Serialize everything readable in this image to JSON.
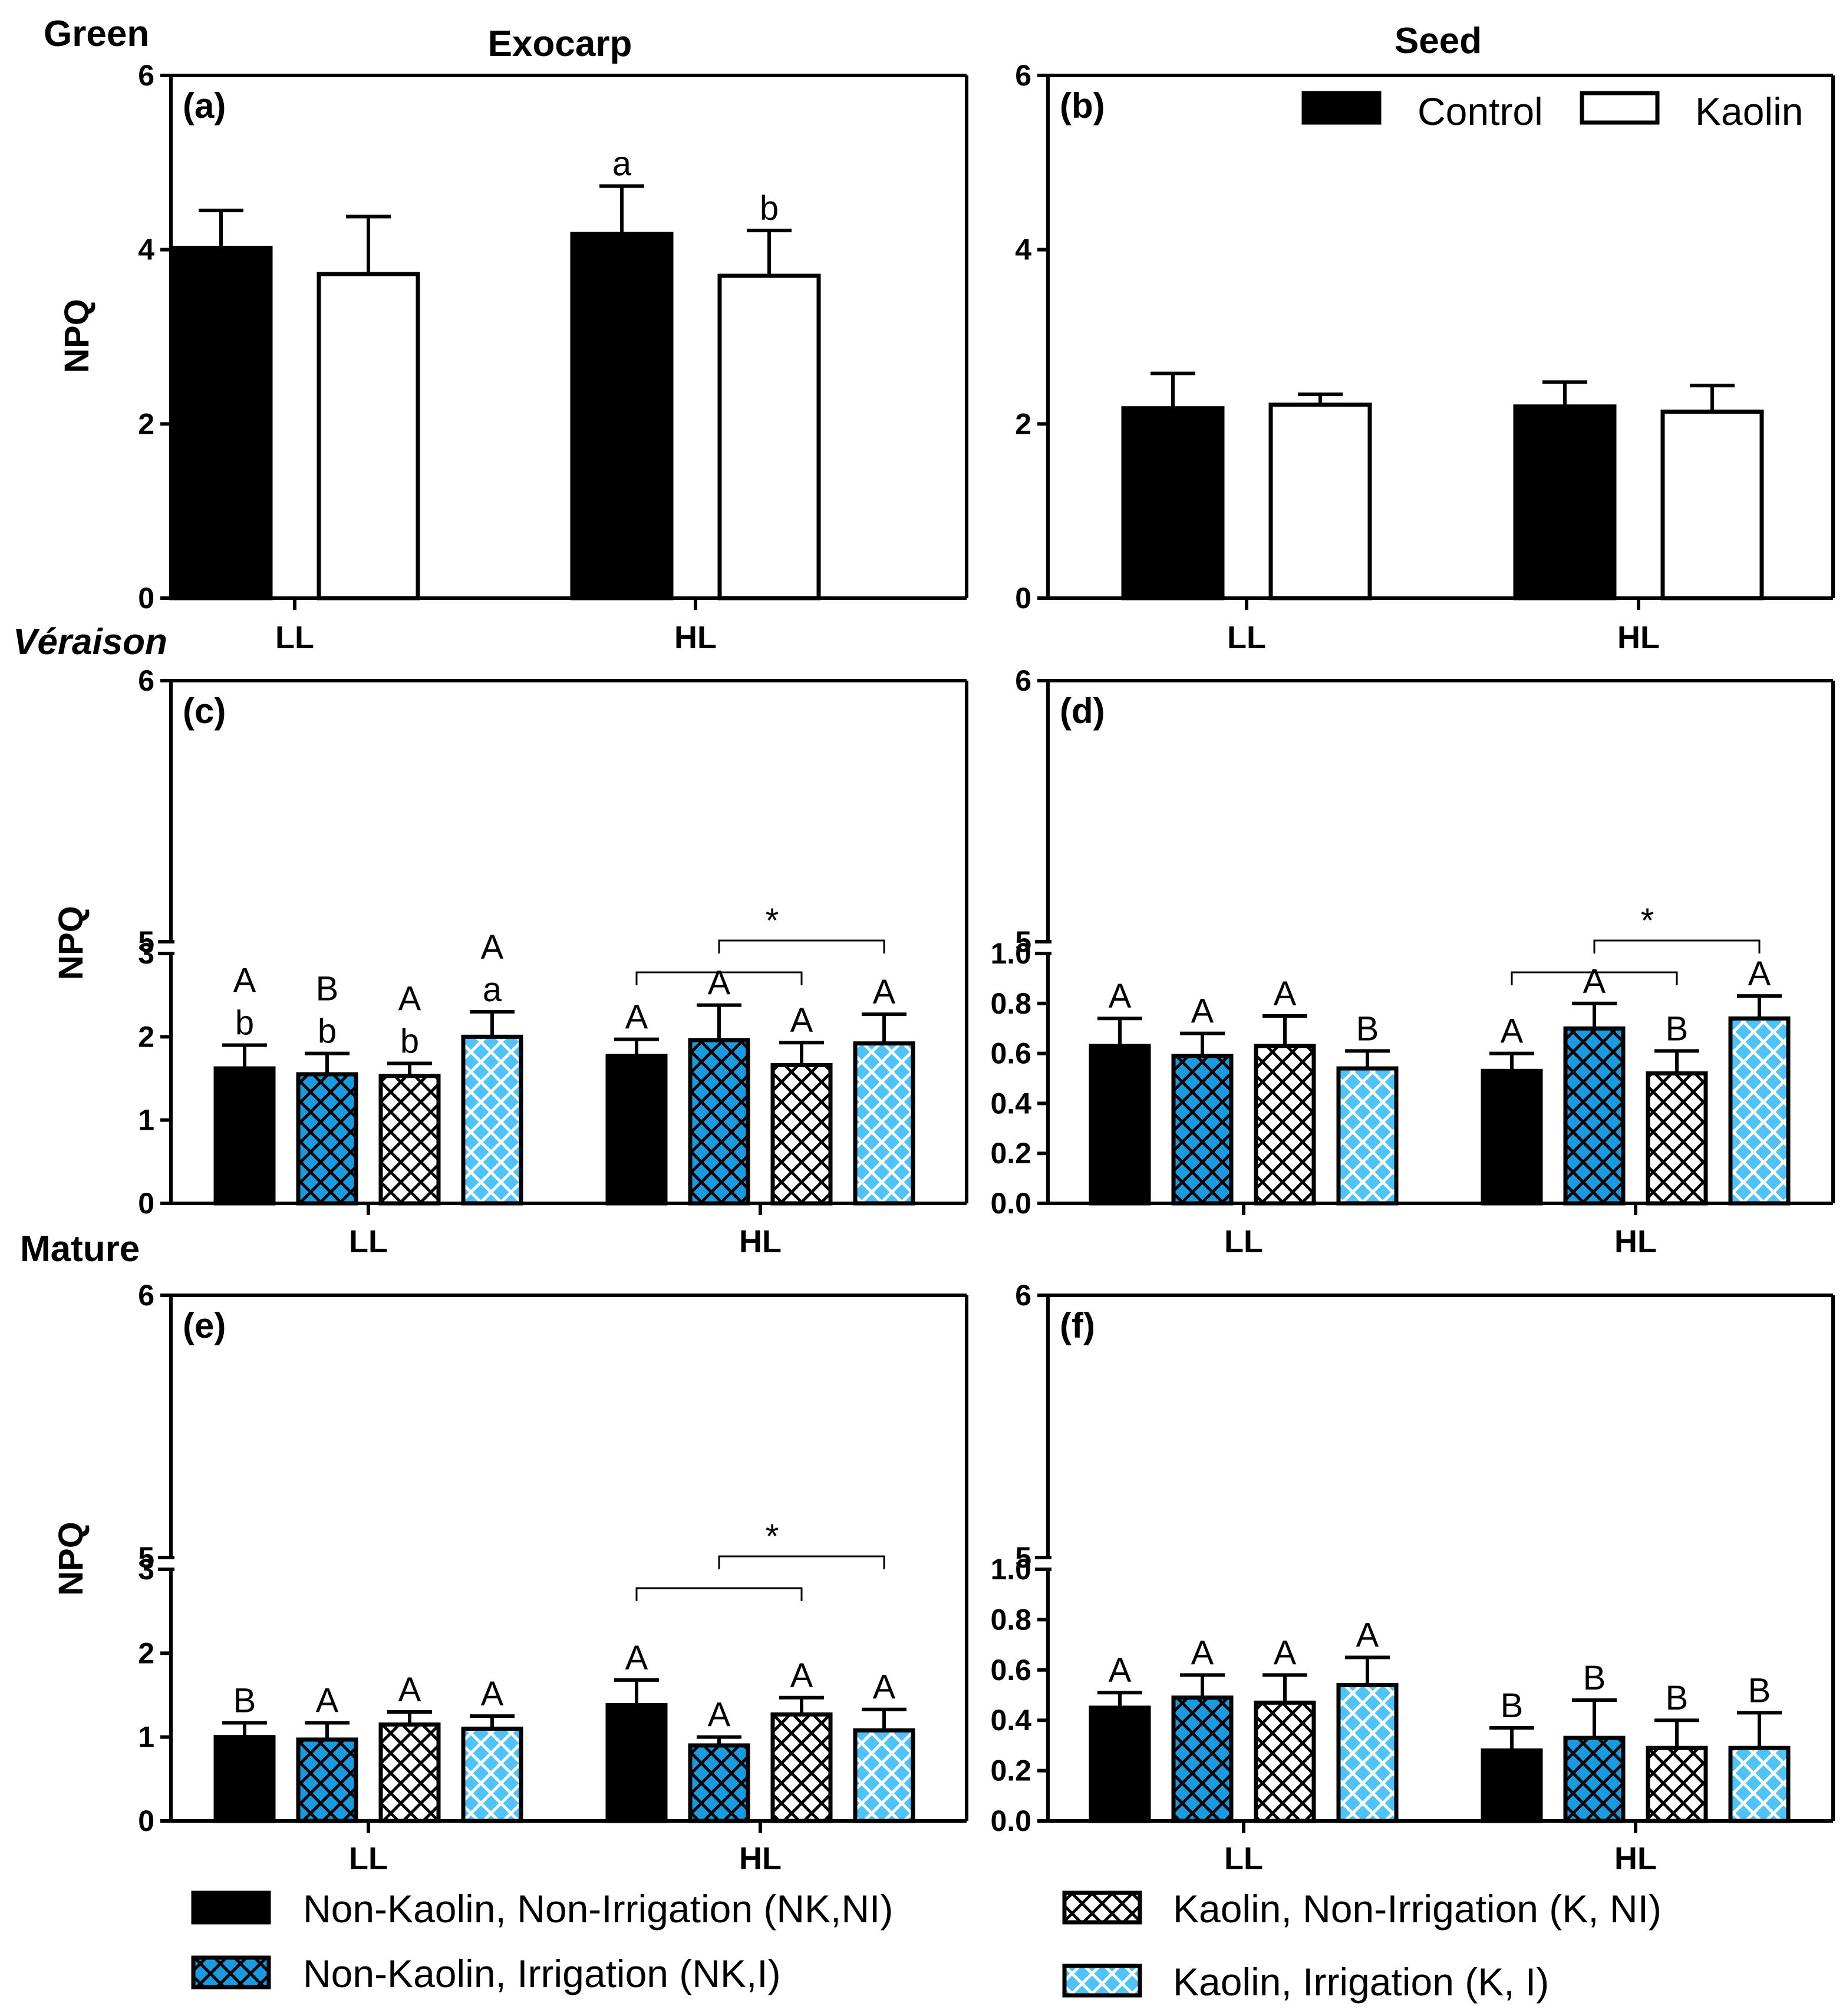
{
  "headers": {
    "row1": "Green",
    "row2": "Véraison",
    "row3": "Mature",
    "col1": "Exocarp",
    "col2": "Seed"
  },
  "ylabel": "NPQ",
  "colors": {
    "black": "#000000",
    "blue_dark": "#1b9ae0",
    "white": "#ffffff",
    "blue_light": "#4fc3f7"
  },
  "legend_top": [
    {
      "label": "Control",
      "style": "solid"
    },
    {
      "label": "Kaolin",
      "style": "open"
    }
  ],
  "legend_bottom": [
    {
      "label": "Non-Kaolin, Non-Irrigation (NK,NI)",
      "style": "solid"
    },
    {
      "label": "Kaolin, Non-Irrigation (K, NI)",
      "style": "hatch-white"
    },
    {
      "label": "Non-Kaolin, Irrigation (NK,I)",
      "style": "hatch-blue"
    },
    {
      "label": "Kaolin, Irrigation (K, I)",
      "style": "hatch-lightblue"
    }
  ],
  "chart_data": [
    {
      "id": "a",
      "panel_label": "(a)",
      "type": "bar",
      "categories": [
        "LL",
        "HL"
      ],
      "series": [
        {
          "name": "Control",
          "style": "solid",
          "values": [
            4.02,
            4.18
          ],
          "errors": [
            0.43,
            0.55
          ]
        },
        {
          "name": "Kaolin",
          "style": "open",
          "values": [
            3.72,
            3.7
          ],
          "errors": [
            0.66,
            0.52
          ]
        }
      ],
      "ylim": [
        0,
        6
      ],
      "yticks": [
        0,
        2,
        4,
        6
      ],
      "annotations": [
        {
          "cat": 1,
          "series": 0,
          "text": "a"
        },
        {
          "cat": 1,
          "series": 1,
          "text": "b"
        }
      ]
    },
    {
      "id": "b",
      "panel_label": "(b)",
      "type": "bar",
      "categories": [
        "LL",
        "HL"
      ],
      "series": [
        {
          "name": "Control",
          "style": "solid",
          "values": [
            2.18,
            2.2
          ],
          "errors": [
            0.4,
            0.28
          ]
        },
        {
          "name": "Kaolin",
          "style": "open",
          "values": [
            2.22,
            2.14
          ],
          "errors": [
            0.12,
            0.3
          ]
        }
      ],
      "ylim": [
        0,
        6
      ],
      "yticks": [
        0,
        2,
        4,
        6
      ],
      "annotations": []
    },
    {
      "id": "c",
      "panel_label": "(c)",
      "type": "bar",
      "categories": [
        "LL",
        "HL"
      ],
      "series": [
        {
          "name": "Non-Kaolin, Non-Irrigation (NK,NI)",
          "style": "solid",
          "values": [
            1.62,
            1.77
          ],
          "errors": [
            0.28,
            0.2
          ]
        },
        {
          "name": "Non-Kaolin, Irrigation (NK,I)",
          "style": "hatch-blue",
          "values": [
            1.55,
            1.96
          ],
          "errors": [
            0.25,
            0.42
          ]
        },
        {
          "name": "Kaolin, Non-Irrigation (K, NI)",
          "style": "hatch-white",
          "values": [
            1.53,
            1.66
          ],
          "errors": [
            0.15,
            0.27
          ]
        },
        {
          "name": "Kaolin, Irrigation (K, I)",
          "style": "hatch-lightblue",
          "values": [
            2.0,
            1.92
          ],
          "errors": [
            0.3,
            0.35
          ]
        }
      ],
      "broken_axis": {
        "lower": [
          0,
          3
        ],
        "upper": [
          5,
          6
        ],
        "lower_ticks": [
          "0",
          "1",
          "2",
          "3"
        ],
        "upper_ticks": [
          "5",
          "6"
        ]
      },
      "annotations": [
        {
          "cat": 0,
          "series": 0,
          "text": "A",
          "sub": "b"
        },
        {
          "cat": 0,
          "series": 1,
          "text": "B",
          "sub": "b"
        },
        {
          "cat": 0,
          "series": 2,
          "text": "A",
          "sub": "b"
        },
        {
          "cat": 0,
          "series": 3,
          "text": "A",
          "sub": "a"
        },
        {
          "cat": 1,
          "series": 0,
          "text": "A"
        },
        {
          "cat": 1,
          "series": 1,
          "text": "A"
        },
        {
          "cat": 1,
          "series": 2,
          "text": "A"
        },
        {
          "cat": 1,
          "series": 3,
          "text": "A"
        }
      ],
      "star": "*"
    },
    {
      "id": "d",
      "panel_label": "(d)",
      "type": "bar",
      "categories": [
        "LL",
        "HL"
      ],
      "series": [
        {
          "name": "Non-Kaolin, Non-Irrigation (NK,NI)",
          "style": "solid",
          "values": [
            0.63,
            0.53
          ],
          "errors": [
            0.11,
            0.07
          ]
        },
        {
          "name": "Non-Kaolin, Irrigation (NK,I)",
          "style": "hatch-blue",
          "values": [
            0.59,
            0.7
          ],
          "errors": [
            0.09,
            0.1
          ]
        },
        {
          "name": "Kaolin, Non-Irrigation (K, NI)",
          "style": "hatch-white",
          "values": [
            0.63,
            0.52
          ],
          "errors": [
            0.12,
            0.09
          ]
        },
        {
          "name": "Kaolin, Irrigation (K, I)",
          "style": "hatch-lightblue",
          "values": [
            0.54,
            0.74
          ],
          "errors": [
            0.07,
            0.09
          ]
        }
      ],
      "broken_axis": {
        "lower": [
          0,
          1
        ],
        "upper": [
          5,
          6
        ],
        "lower_ticks": [
          "0.0",
          "0.2",
          "0.4",
          "0.6",
          "0.8",
          "1.0"
        ],
        "upper_ticks": [
          "5",
          "6"
        ]
      },
      "annotations": [
        {
          "cat": 0,
          "series": 0,
          "text": "A"
        },
        {
          "cat": 0,
          "series": 1,
          "text": "A"
        },
        {
          "cat": 0,
          "series": 2,
          "text": "A"
        },
        {
          "cat": 0,
          "series": 3,
          "text": "B"
        },
        {
          "cat": 1,
          "series": 0,
          "text": "A"
        },
        {
          "cat": 1,
          "series": 1,
          "text": "A"
        },
        {
          "cat": 1,
          "series": 2,
          "text": "B"
        },
        {
          "cat": 1,
          "series": 3,
          "text": "A"
        }
      ],
      "star": "*"
    },
    {
      "id": "e",
      "panel_label": "(e)",
      "type": "bar",
      "categories": [
        "LL",
        "HL"
      ],
      "series": [
        {
          "name": "Non-Kaolin, Non-Irrigation (NK,NI)",
          "style": "solid",
          "values": [
            1.0,
            1.38
          ],
          "errors": [
            0.17,
            0.3
          ]
        },
        {
          "name": "Non-Kaolin, Irrigation (NK,I)",
          "style": "hatch-blue",
          "values": [
            0.97,
            0.9
          ],
          "errors": [
            0.2,
            0.1
          ]
        },
        {
          "name": "Kaolin, Non-Irrigation (K, NI)",
          "style": "hatch-white",
          "values": [
            1.15,
            1.27
          ],
          "errors": [
            0.15,
            0.2
          ]
        },
        {
          "name": "Kaolin, Irrigation (K, I)",
          "style": "hatch-lightblue",
          "values": [
            1.1,
            1.08
          ],
          "errors": [
            0.15,
            0.25
          ]
        }
      ],
      "broken_axis": {
        "lower": [
          0,
          3
        ],
        "upper": [
          5,
          6
        ],
        "lower_ticks": [
          "0",
          "1",
          "2",
          "3"
        ],
        "upper_ticks": [
          "5",
          "6"
        ]
      },
      "annotations": [
        {
          "cat": 0,
          "series": 0,
          "text": "B"
        },
        {
          "cat": 0,
          "series": 1,
          "text": "A"
        },
        {
          "cat": 0,
          "series": 2,
          "text": "A"
        },
        {
          "cat": 0,
          "series": 3,
          "text": "A"
        },
        {
          "cat": 1,
          "series": 0,
          "text": "A"
        },
        {
          "cat": 1,
          "series": 1,
          "text": "A"
        },
        {
          "cat": 1,
          "series": 2,
          "text": "A"
        },
        {
          "cat": 1,
          "series": 3,
          "text": "A"
        }
      ],
      "star": "*"
    },
    {
      "id": "f",
      "panel_label": "(f)",
      "type": "bar",
      "categories": [
        "LL",
        "HL"
      ],
      "series": [
        {
          "name": "Non-Kaolin, Non-Irrigation (NK,NI)",
          "style": "solid",
          "values": [
            0.45,
            0.28
          ],
          "errors": [
            0.06,
            0.09
          ]
        },
        {
          "name": "Non-Kaolin, Irrigation (NK,I)",
          "style": "hatch-blue",
          "values": [
            0.49,
            0.33
          ],
          "errors": [
            0.09,
            0.15
          ]
        },
        {
          "name": "Kaolin, Non-Irrigation (K, NI)",
          "style": "hatch-white",
          "values": [
            0.47,
            0.29
          ],
          "errors": [
            0.11,
            0.11
          ]
        },
        {
          "name": "Kaolin, Irrigation (K, I)",
          "style": "hatch-lightblue",
          "values": [
            0.54,
            0.29
          ],
          "errors": [
            0.11,
            0.14
          ]
        }
      ],
      "broken_axis": {
        "lower": [
          0,
          1
        ],
        "upper": [
          5,
          6
        ],
        "lower_ticks": [
          "0.0",
          "0.2",
          "0.4",
          "0.6",
          "0.8",
          "1.0"
        ],
        "upper_ticks": [
          "5",
          "6"
        ]
      },
      "annotations": [
        {
          "cat": 0,
          "series": 0,
          "text": "A"
        },
        {
          "cat": 0,
          "series": 1,
          "text": "A"
        },
        {
          "cat": 0,
          "series": 2,
          "text": "A"
        },
        {
          "cat": 0,
          "series": 3,
          "text": "A"
        },
        {
          "cat": 1,
          "series": 0,
          "text": "B"
        },
        {
          "cat": 1,
          "series": 1,
          "text": "B"
        },
        {
          "cat": 1,
          "series": 2,
          "text": "B"
        },
        {
          "cat": 1,
          "series": 3,
          "text": "B"
        }
      ]
    }
  ]
}
